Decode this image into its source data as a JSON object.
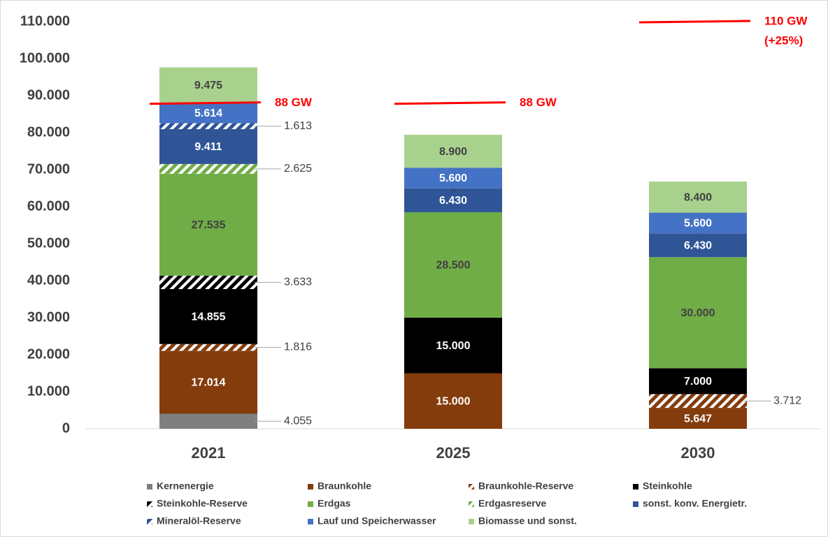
{
  "chart_data": {
    "type": "stacked_bar",
    "categories": [
      "2021",
      "2025",
      "2030"
    ],
    "ylim": [
      0,
      110000
    ],
    "yticks": [
      0,
      {
        "value": 10000,
        "label": "10.000"
      },
      {
        "value": 20000,
        "label": "20.000"
      },
      {
        "value": 30000,
        "label": "30.000"
      },
      {
        "value": 40000,
        "label": "40.000"
      },
      {
        "value": 50000,
        "label": "50.000"
      },
      {
        "value": 60000,
        "label": "60.000"
      },
      {
        "value": 70000,
        "label": "70.000"
      },
      {
        "value": 80000,
        "label": "80.000"
      },
      {
        "value": 90000,
        "label": "90.000"
      },
      {
        "value": 100000,
        "label": "100.000"
      },
      {
        "value": 110000,
        "label": "110.000"
      }
    ],
    "grid": false,
    "legend": "bottom",
    "series": [
      {
        "name": "Kernenergie",
        "color": "#7f7f7f",
        "label_color": "#404040",
        "values": [
          4055,
          null,
          null
        ],
        "value_labels": [
          "4.055",
          null,
          null
        ]
      },
      {
        "name": "Braunkohle",
        "color": "#843c0c",
        "label_color": "#ffffff",
        "values": [
          17014,
          15000,
          5647
        ],
        "value_labels": [
          "17.014",
          "15.000",
          "5.647"
        ]
      },
      {
        "name": "Braunkohle-Reserve",
        "color": "#843c0c",
        "pattern": "hatch",
        "label_color": "#404040",
        "values": [
          1816,
          null,
          3712
        ],
        "value_labels": [
          "1.816",
          null,
          "3.712"
        ]
      },
      {
        "name": "Steinkohle",
        "color": "#000000",
        "label_color": "#ffffff",
        "values": [
          14855,
          15000,
          7000
        ],
        "value_labels": [
          "14.855",
          "15.000",
          "7.000"
        ]
      },
      {
        "name": "Steinkohle-Reserve",
        "color": "#000000",
        "pattern": "hatch",
        "label_color": "#404040",
        "values": [
          3633,
          null,
          null
        ],
        "value_labels": [
          "3.633",
          null,
          null
        ]
      },
      {
        "name": "Erdgas",
        "color": "#70ad47",
        "label_color": "#404040",
        "values": [
          27535,
          28500,
          30000
        ],
        "value_labels": [
          "27.535",
          "28.500",
          "30.000"
        ]
      },
      {
        "name": "Erdgasreserve",
        "color": "#70ad47",
        "pattern": "hatch",
        "label_color": "#404040",
        "values": [
          2625,
          null,
          null
        ],
        "value_labels": [
          "2.625",
          null,
          null
        ]
      },
      {
        "name": "sonst. konv. Energietr.",
        "color": "#2f5597",
        "label_color": "#ffffff",
        "values": [
          9411,
          6430,
          6430
        ],
        "value_labels": [
          "9.411",
          "6.430",
          "6.430"
        ]
      },
      {
        "name": "Mineralöl-Reserve",
        "color": "#2f5597",
        "pattern": "hatch",
        "label_color": "#404040",
        "values": [
          1613,
          0,
          null
        ],
        "value_labels": [
          "1.613",
          "0",
          null
        ]
      },
      {
        "name": "Lauf und Speicherwasser",
        "color": "#4472c4",
        "label_color": "#ffffff",
        "values": [
          5614,
          5600,
          5600
        ],
        "value_labels": [
          "5.614",
          "5.600",
          "5.600"
        ]
      },
      {
        "name": "Biomasse und sonst.",
        "color": "#a9d18e",
        "label_color": "#404040",
        "values": [
          9475,
          8900,
          8400
        ],
        "value_labels": [
          "9.475",
          "8.900",
          "8.400"
        ]
      }
    ],
    "reference_lines": [
      {
        "value": 88000,
        "label": "88 GW",
        "color": "#ff0000"
      },
      {
        "value": 88000,
        "label": "88 GW",
        "color": "#ff0000"
      },
      {
        "value": 110000,
        "label": "110 GW",
        "sublabel": "(+25%)",
        "color": "#ff0000"
      }
    ]
  }
}
